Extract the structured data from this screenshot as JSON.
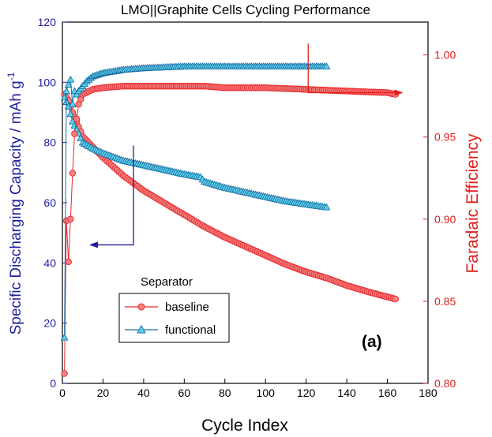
{
  "chart_data": {
    "type": "scatter",
    "title": "LMO||Graphite Cells Cycling Performance",
    "panel_label": "(a)",
    "xlabel": "Cycle Index",
    "ylabel_left": "Specific Discharging Capacity / mAh g",
    "ylabel_left_sup": "-1",
    "ylabel_right": "Faradaic Efficiency",
    "xlim": [
      0,
      180
    ],
    "ylim_left": [
      0,
      120
    ],
    "ylim_right": [
      0.8,
      1.02
    ],
    "x_ticks": [
      "0",
      "20",
      "40",
      "60",
      "80",
      "100",
      "120",
      "140",
      "160",
      "180"
    ],
    "y_left_ticks": [
      "0",
      "20",
      "40",
      "60",
      "80",
      "100",
      "120"
    ],
    "y_right_ticks": [
      "0.80",
      "0.85",
      "0.90",
      "0.95",
      "1.00"
    ],
    "legend": {
      "title": "Separator",
      "entries": [
        "baseline",
        "functional"
      ],
      "placement": "lower-left"
    },
    "colors": {
      "baseline": "#e8272c",
      "baseline_fill": "#f4807f",
      "functional": "#1a6fa8",
      "functional_fill": "#5fd3e8",
      "left_axis": "#1f1f9e",
      "right_axis": "#e0201c"
    },
    "series": [
      {
        "name": "baseline",
        "quantity": "capacity",
        "axis": "left",
        "marker": "circle",
        "x": [
          1,
          3,
          5,
          10,
          20,
          30,
          40,
          50,
          60,
          70,
          80,
          90,
          100,
          110,
          120,
          130,
          140,
          150,
          160,
          164
        ],
        "y": [
          96,
          94,
          90,
          82,
          75,
          69,
          64,
          60,
          56,
          52,
          48.5,
          45.5,
          42.5,
          39.5,
          37,
          35,
          32.5,
          30.5,
          28.7,
          28
        ]
      },
      {
        "name": "functional",
        "quantity": "capacity",
        "axis": "left",
        "marker": "triangle",
        "x": [
          1,
          3,
          5,
          8,
          10,
          15,
          20,
          30,
          40,
          50,
          60,
          68,
          70,
          80,
          90,
          100,
          110,
          120,
          130
        ],
        "y": [
          95,
          92,
          87,
          83,
          80,
          78,
          76.5,
          74,
          72.5,
          71,
          69.5,
          68.5,
          67,
          65,
          63.5,
          62,
          60.5,
          59.5,
          58.5
        ]
      },
      {
        "name": "baseline",
        "quantity": "faradaic_efficiency",
        "axis": "right",
        "marker": "circle",
        "x": [
          1,
          2,
          3,
          4,
          5,
          6,
          7,
          8,
          10,
          15,
          20,
          30,
          40,
          60,
          70,
          80,
          100,
          120,
          140,
          160,
          164
        ],
        "y": [
          0.806,
          0.899,
          0.874,
          0.9,
          0.928,
          0.952,
          0.961,
          0.97,
          0.976,
          0.979,
          0.98,
          0.981,
          0.981,
          0.981,
          0.981,
          0.98,
          0.98,
          0.979,
          0.978,
          0.977,
          0.976
        ]
      },
      {
        "name": "functional",
        "quantity": "faradaic_efficiency",
        "axis": "right",
        "marker": "triangle",
        "x": [
          1,
          2,
          3,
          4,
          5,
          6,
          7,
          8,
          10,
          12,
          15,
          20,
          30,
          40,
          60,
          80,
          100,
          120,
          130
        ],
        "y": [
          0.828,
          0.978,
          0.982,
          0.985,
          0.97,
          0.978,
          0.976,
          0.978,
          0.981,
          0.984,
          0.987,
          0.989,
          0.991,
          0.992,
          0.993,
          0.993,
          0.993,
          0.993,
          0.993
        ]
      }
    ],
    "annotations": [
      {
        "type": "arrow-left",
        "target_axis": "left",
        "near_series": "capacity",
        "x": 35,
        "y_from": 79,
        "y_to": 46
      },
      {
        "type": "arrow-right",
        "target_axis": "right",
        "near_series": "faradaic_efficiency",
        "x": 121,
        "y_from": 1.007,
        "y_to": 0.977
      }
    ]
  }
}
